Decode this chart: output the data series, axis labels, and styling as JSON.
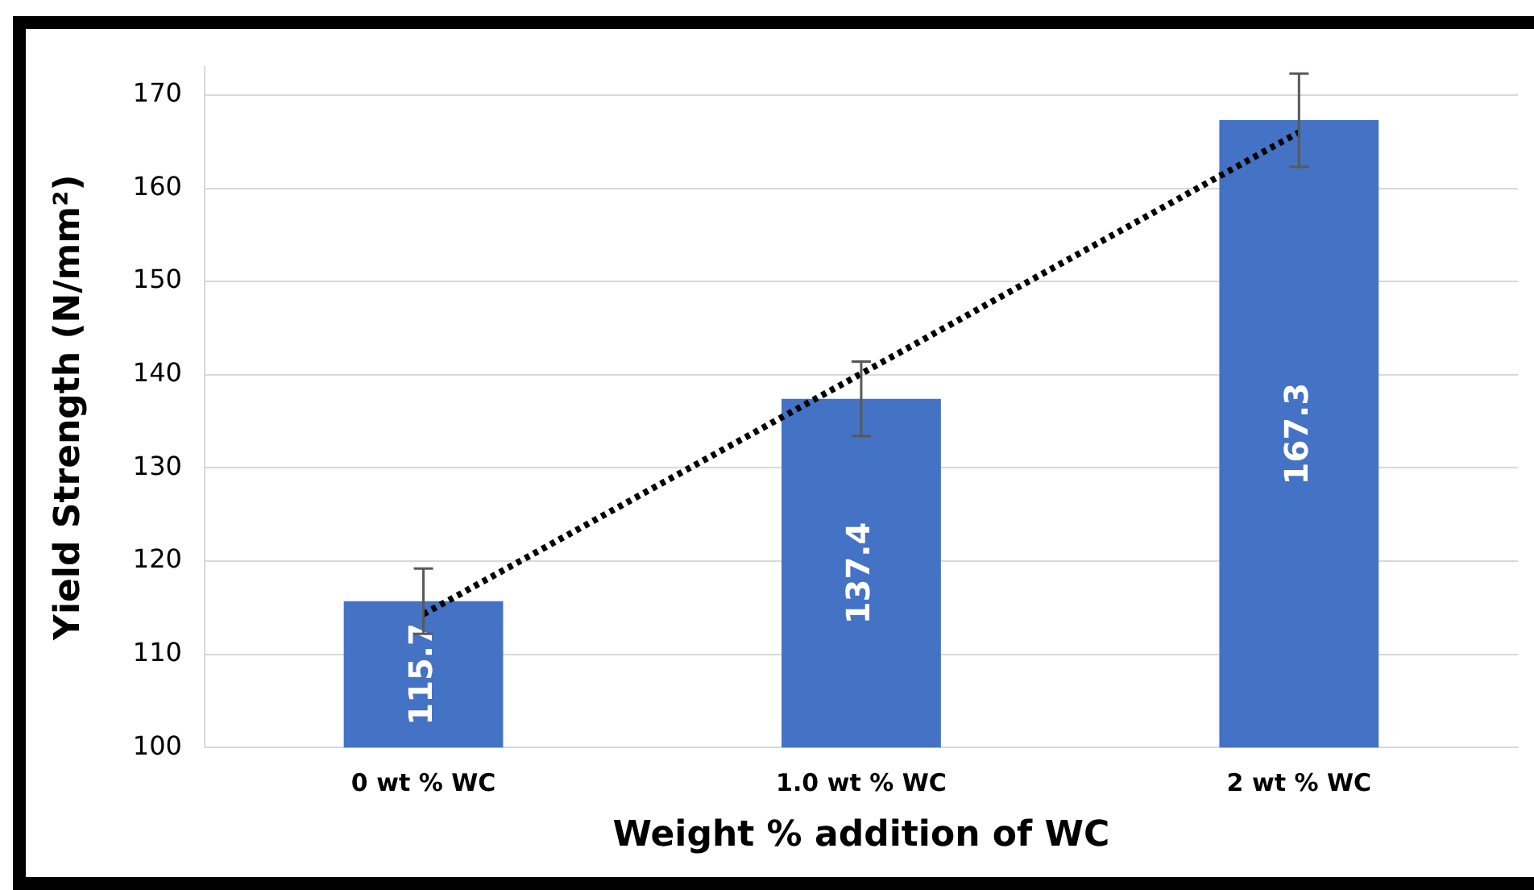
{
  "chart_data": {
    "type": "bar",
    "xlabel": "Weight % addition of WC",
    "ylabel": "Yield Strength (N/mm²)",
    "categories": [
      "0 wt % WC",
      "1.0 wt % WC",
      "2 wt % WC"
    ],
    "series": [
      {
        "color": "#4472c4",
        "values": [
          115.7,
          137.4,
          167.3
        ],
        "errors": [
          3.5,
          4,
          5
        ],
        "value_labels": [
          "115.7",
          "137.4",
          "167.3"
        ]
      },
      {
        "type": "line",
        "x": [
          "0 wt % WC",
          "1.0 wt % WC",
          "2 wt % WC"
        ],
        "values": [
          114.3,
          140.1,
          166.0
        ],
        "color": "#000000",
        "line_style": "dotted",
        "marker": "none"
      }
    ],
    "ylim": [
      100,
      173
    ],
    "yticks": [
      100,
      110,
      120,
      130,
      140,
      150,
      160,
      170
    ],
    "grid": "y",
    "legend": false
  }
}
